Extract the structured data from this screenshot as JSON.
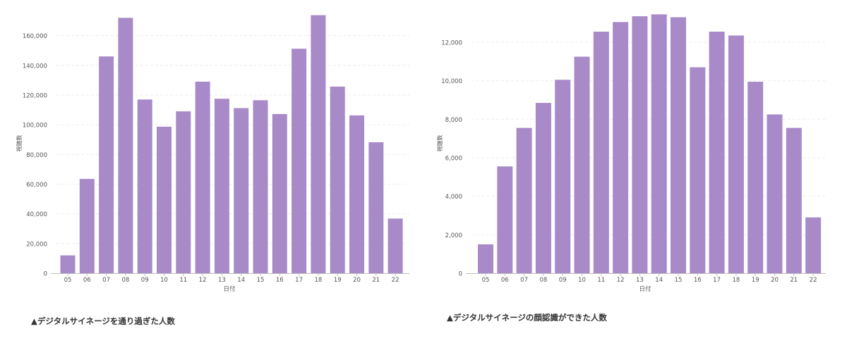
{
  "chart_data": [
    {
      "type": "bar",
      "title": "",
      "xlabel": "日付",
      "ylabel": "視聴数",
      "categories": [
        "05",
        "06",
        "07",
        "08",
        "09",
        "10",
        "11",
        "12",
        "13",
        "14",
        "15",
        "16",
        "17",
        "18",
        "19",
        "20",
        "21",
        "22"
      ],
      "values": [
        12000,
        63500,
        146000,
        172000,
        117000,
        98700,
        109000,
        129000,
        117500,
        111200,
        116500,
        107200,
        151200,
        173800,
        125700,
        106300,
        88200,
        36800
      ],
      "ylim": [
        0,
        175000
      ],
      "yticks": [
        0,
        20000,
        40000,
        60000,
        80000,
        100000,
        120000,
        140000,
        160000
      ],
      "ytick_labels": [
        "0",
        "20,000",
        "40,000",
        "60,000",
        "80,000",
        "100,000",
        "120,000",
        "140,000",
        "160,000"
      ],
      "grid": true,
      "bar_color": "#a88ac8",
      "caption": "▲デジタルサイネージを通り過ぎた人数"
    },
    {
      "type": "bar",
      "title": "",
      "xlabel": "日付",
      "ylabel": "視聴数",
      "categories": [
        "05",
        "06",
        "07",
        "08",
        "09",
        "10",
        "11",
        "12",
        "13",
        "14",
        "15",
        "16",
        "17",
        "18",
        "19",
        "20",
        "21",
        "22"
      ],
      "values": [
        1500,
        5550,
        7550,
        8850,
        10050,
        11250,
        12550,
        13050,
        13350,
        13450,
        13300,
        10700,
        12550,
        12350,
        9950,
        8250,
        7550,
        2900
      ],
      "ylim": [
        0,
        13500
      ],
      "yticks": [
        0,
        2000,
        4000,
        6000,
        8000,
        10000,
        12000
      ],
      "ytick_labels": [
        "0",
        "2,000",
        "4,000",
        "6,000",
        "8,000",
        "10,000",
        "12,000"
      ],
      "grid": true,
      "bar_color": "#a88ac8",
      "caption": "▲デジタルサイネージの顔認識ができた人数"
    }
  ]
}
